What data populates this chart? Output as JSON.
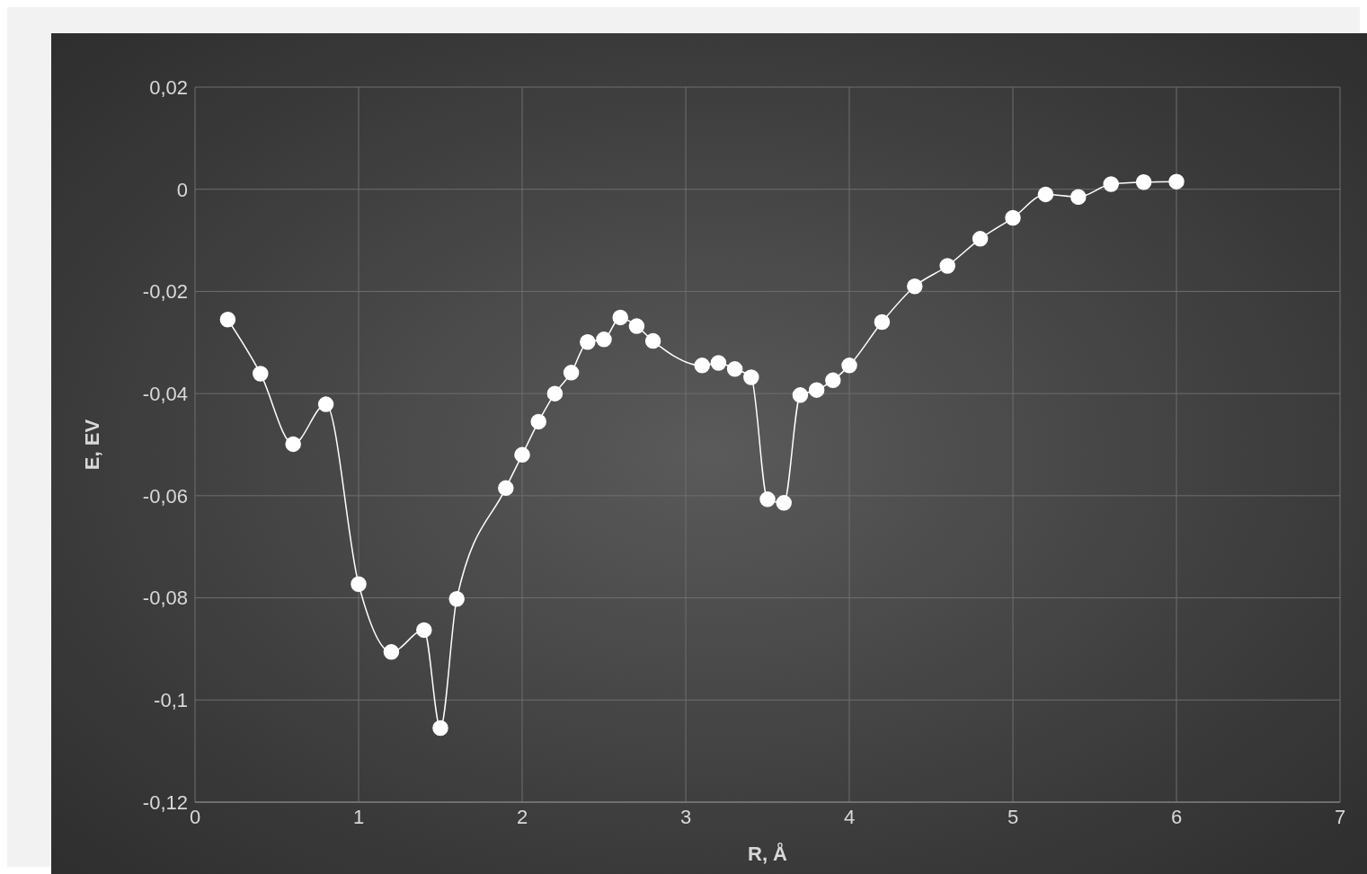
{
  "chart_data": {
    "type": "line",
    "xlabel": "R, Å",
    "ylabel": "E, EV",
    "x": [
      0.2,
      0.4,
      0.6,
      0.8,
      1.0,
      1.2,
      1.4,
      1.5,
      1.6,
      1.9,
      2.0,
      2.1,
      2.2,
      2.3,
      2.4,
      2.5,
      2.6,
      2.7,
      2.8,
      3.1,
      3.2,
      3.3,
      3.4,
      3.5,
      3.6,
      3.7,
      3.8,
      3.9,
      4.0,
      4.2,
      4.4,
      4.6,
      4.8,
      5.0,
      5.2,
      5.4,
      5.6,
      5.8,
      6.0
    ],
    "series": [
      {
        "color": "#ffffff",
        "values": [
          -0.0255,
          -0.0361,
          -0.0499,
          -0.0421,
          -0.0773,
          -0.0906,
          -0.0863,
          -0.1055,
          -0.0802,
          -0.0585,
          -0.052,
          -0.0455,
          -0.04,
          -0.0359,
          -0.0299,
          -0.0294,
          -0.0251,
          -0.0268,
          -0.0297,
          -0.0345,
          -0.034,
          -0.0352,
          -0.0368,
          -0.0607,
          -0.0614,
          -0.0403,
          -0.0393,
          -0.0374,
          -0.0345,
          -0.026,
          -0.019,
          -0.015,
          -0.0097,
          -0.0056,
          -0.001,
          -0.0015,
          0.001,
          0.0014,
          0.0015
        ]
      }
    ],
    "xlim": [
      0,
      7
    ],
    "xticks": [
      0,
      1,
      2,
      3,
      4,
      5,
      6,
      7
    ],
    "ylim": [
      -0.12,
      0.02
    ],
    "yticks": [
      {
        "value": -0.12,
        "label": "-0,12"
      },
      {
        "value": -0.1,
        "label": "-0,1"
      },
      {
        "value": -0.08,
        "label": "-0,08"
      },
      {
        "value": -0.06,
        "label": "-0,06"
      },
      {
        "value": -0.04,
        "label": "-0,04"
      },
      {
        "value": -0.02,
        "label": "-0,02"
      },
      0,
      {
        "value": 0.02,
        "label": "0,02"
      }
    ],
    "grid": true,
    "marker": "circle",
    "line_style": "solid"
  }
}
